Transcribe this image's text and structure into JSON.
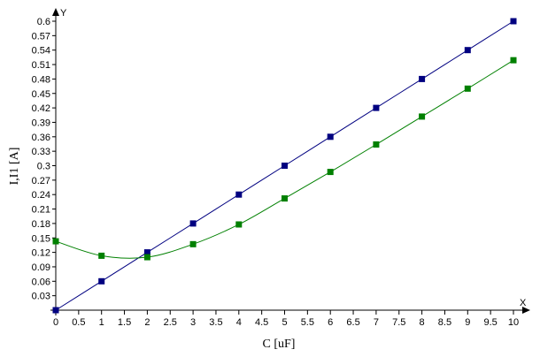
{
  "chart_data": {
    "type": "line",
    "xlabel": "C [uF]",
    "ylabel": "I,I1 [A]",
    "x_axis_letter": "X",
    "y_axis_letter": "Y",
    "xlim": [
      0,
      10
    ],
    "ylim": [
      0,
      0.6
    ],
    "x_ticks": [
      "0",
      "0.5",
      "1",
      "1.5",
      "2",
      "2.5",
      "3",
      "3.5",
      "4",
      "4.5",
      "5",
      "5.5",
      "6",
      "6.5",
      "7",
      "7.5",
      "8",
      "8.5",
      "9",
      "9.5",
      "10"
    ],
    "y_ticks": [
      "0.03",
      "0.06",
      "0.09",
      "0.12",
      "0.15",
      "0.18",
      "0.21",
      "0.24",
      "0.27",
      "0.3",
      "0.33",
      "0.36",
      "0.39",
      "0.42",
      "0.45",
      "0.48",
      "0.51",
      "0.54",
      "0.57",
      "0.6"
    ],
    "grid": false,
    "series": [
      {
        "color": "#000080",
        "x": [
          0,
          1,
          2,
          3,
          4,
          5,
          6,
          7,
          8,
          9,
          10
        ],
        "y": [
          0.0,
          0.06,
          0.12,
          0.18,
          0.24,
          0.3,
          0.36,
          0.42,
          0.48,
          0.54,
          0.6
        ]
      },
      {
        "color": "#008000",
        "x": [
          0,
          1,
          2,
          3,
          4,
          5,
          6,
          7,
          8,
          9,
          10
        ],
        "y": [
          0.143,
          0.113,
          0.11,
          0.137,
          0.178,
          0.232,
          0.287,
          0.344,
          0.402,
          0.46,
          0.519
        ]
      }
    ]
  }
}
